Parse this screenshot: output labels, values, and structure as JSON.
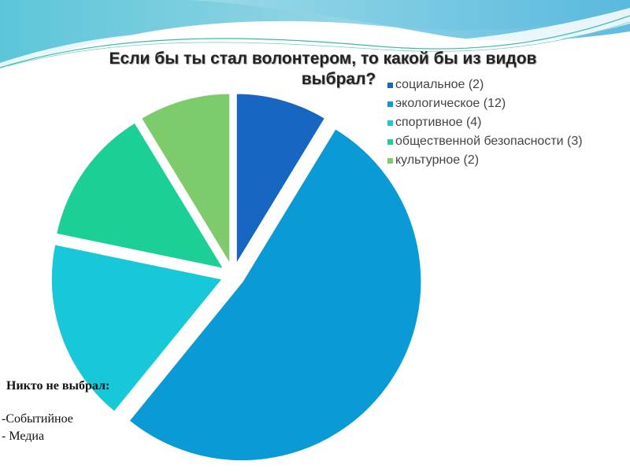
{
  "chart_data": {
    "type": "pie",
    "title": "Если бы ты стал волонтером, то какой бы из видов выбрал?",
    "title_lines": [
      "Если бы ты стал волонтером, то какой бы из видов",
      "выбрал?"
    ],
    "categories": [
      "социальное",
      "экологическое",
      "спортивное",
      "общественной безопасности",
      "культурное"
    ],
    "values": [
      2,
      12,
      4,
      3,
      2
    ],
    "legend_labels": [
      "социальное (2)",
      "экологическое (12)",
      "спортивное (4)",
      "общественной безопасности (3)",
      "культурное (2)"
    ],
    "colors": [
      "#1766c2",
      "#0a9bd6",
      "#17c9d8",
      "#1ccf96",
      "#7dcb6a"
    ],
    "exploded": true,
    "legend_position": "right"
  },
  "note": {
    "heading": "Никто не выбрал:",
    "items": [
      "-Событийное",
      "- Медиа"
    ]
  }
}
